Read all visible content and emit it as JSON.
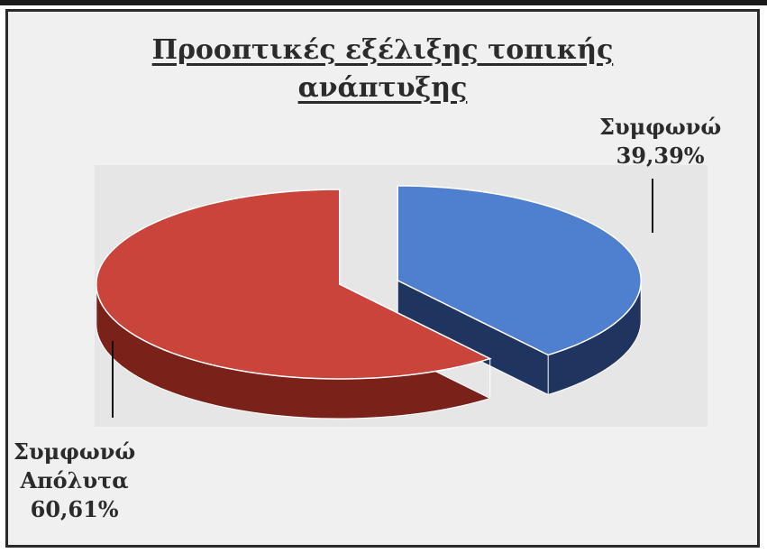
{
  "chart_data": {
    "type": "pie",
    "title_lines": [
      "Προοπτικές εξέλιξης τοπικής",
      "ανάπτυξης"
    ],
    "slices": [
      {
        "label_lines": [
          "Συμφωνώ",
          "39,39%"
        ],
        "value": 39.39,
        "color": "#4f7fcf",
        "side_color": "#1f3560"
      },
      {
        "label_lines": [
          "Συμφωνώ",
          "Απόλυτα",
          "60,61%"
        ],
        "value": 60.61,
        "color": "#c9443a",
        "side_color": "#7a2219"
      }
    ],
    "style": "3d-exploded",
    "legend": "none"
  }
}
